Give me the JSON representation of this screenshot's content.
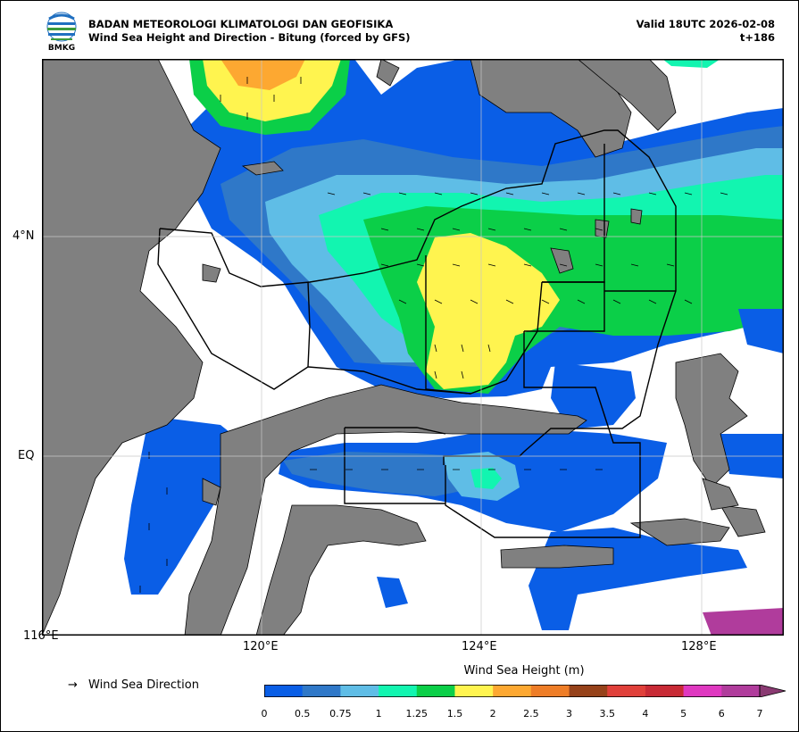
{
  "header": {
    "agency": "BADAN METEOROLOGI KLIMATOLOGI DAN GEOFISIKA",
    "product": "Wind Sea Height and Direction - Bitung (forced by GFS)",
    "valid": "Valid 18UTC 2026-02-08",
    "lead": "t+186",
    "logo_text": "BMKG"
  },
  "map": {
    "lon_ticks": [
      "116°E",
      "120°E",
      "124°E",
      "128°E"
    ],
    "lat_ticks": [
      "4°N",
      "EQ"
    ],
    "land_color": "#808080",
    "sea_color": "#ffffff",
    "arrow_icon": "wind-direction-arrow"
  },
  "legend": {
    "direction_symbol": "→",
    "direction_label": "Wind Sea Direction"
  },
  "colorbar": {
    "title": "Wind Sea Height (m)",
    "boundaries": [
      "0",
      "0.5",
      "0.75",
      "1",
      "1.25",
      "1.5",
      "2",
      "2.5",
      "3",
      "3.5",
      "4",
      "5",
      "6",
      "7"
    ],
    "colors": [
      "#0a5ee6",
      "#2f78c8",
      "#5fbde6",
      "#12f5b0",
      "#0bcf48",
      "#fff44f",
      "#fda831",
      "#ee7d27",
      "#96421a",
      "#e0403a",
      "#c82a35",
      "#df38c0",
      "#b03c9c"
    ],
    "extend_color": "#8a3a72"
  }
}
